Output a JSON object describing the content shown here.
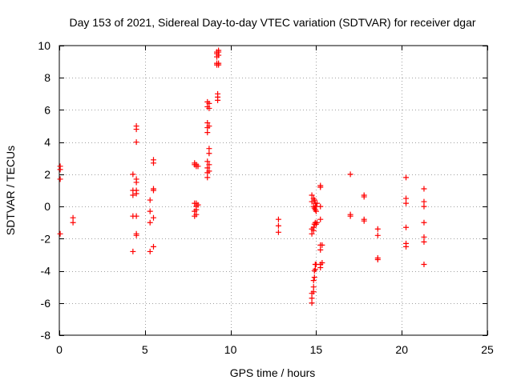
{
  "chart_data": {
    "type": "scatter",
    "title": "Day 153 of 2021, Sidereal Day-to-day VTEC variation (SDTVAR) for receiver dgar",
    "xlabel": "GPS time / hours",
    "ylabel": "SDTVAR / TECUs",
    "xlim": [
      0,
      25
    ],
    "ylim": [
      -8,
      10
    ],
    "xticks": [
      0,
      5,
      10,
      15,
      20,
      25
    ],
    "yticks": [
      -8,
      -6,
      -4,
      -2,
      0,
      2,
      4,
      6,
      8,
      10
    ],
    "grid": true,
    "marker": "plus",
    "color": "#ff0000",
    "series": [
      {
        "name": "SDTVAR",
        "points": [
          [
            0.05,
            2.5
          ],
          [
            0.05,
            2.3
          ],
          [
            0.05,
            1.7
          ],
          [
            0.05,
            -1.7
          ],
          [
            0.8,
            -0.7
          ],
          [
            0.8,
            -1.0
          ],
          [
            4.3,
            2.0
          ],
          [
            4.3,
            1.0
          ],
          [
            4.3,
            0.7
          ],
          [
            4.3,
            -0.6
          ],
          [
            4.3,
            -2.8
          ],
          [
            4.5,
            5.0
          ],
          [
            4.5,
            4.8
          ],
          [
            4.5,
            4.0
          ],
          [
            4.5,
            1.7
          ],
          [
            4.5,
            1.5
          ],
          [
            4.5,
            1.0
          ],
          [
            4.5,
            0.8
          ],
          [
            4.5,
            -0.6
          ],
          [
            4.5,
            -1.7
          ],
          [
            4.5,
            -1.8
          ],
          [
            5.3,
            0.4
          ],
          [
            5.3,
            -0.3
          ],
          [
            5.3,
            -1.0
          ],
          [
            5.3,
            -2.8
          ],
          [
            5.5,
            2.9
          ],
          [
            5.5,
            2.7
          ],
          [
            5.5,
            1.1
          ],
          [
            5.5,
            1.0
          ],
          [
            5.5,
            -0.7
          ],
          [
            5.5,
            -2.5
          ],
          [
            7.9,
            2.7
          ],
          [
            7.9,
            2.6
          ],
          [
            7.9,
            0.2
          ],
          [
            7.9,
            -0.3
          ],
          [
            7.9,
            -0.6
          ],
          [
            8.0,
            2.6
          ],
          [
            8.0,
            2.5
          ],
          [
            8.0,
            0.2
          ],
          [
            8.0,
            0.0
          ],
          [
            8.0,
            -0.2
          ],
          [
            8.0,
            -0.5
          ],
          [
            8.1,
            2.5
          ],
          [
            8.1,
            0.1
          ],
          [
            8.65,
            6.5
          ],
          [
            8.65,
            6.2
          ],
          [
            8.65,
            5.2
          ],
          [
            8.65,
            4.9
          ],
          [
            8.65,
            4.6
          ],
          [
            8.65,
            2.8
          ],
          [
            8.65,
            2.4
          ],
          [
            8.65,
            2.1
          ],
          [
            8.65,
            1.8
          ],
          [
            8.75,
            6.4
          ],
          [
            8.75,
            6.1
          ],
          [
            8.75,
            5.0
          ],
          [
            8.75,
            3.6
          ],
          [
            8.75,
            3.3
          ],
          [
            8.75,
            2.6
          ],
          [
            8.75,
            2.2
          ],
          [
            9.2,
            9.6
          ],
          [
            9.2,
            9.5
          ],
          [
            9.2,
            9.3
          ],
          [
            9.2,
            8.9
          ],
          [
            9.2,
            8.8
          ],
          [
            9.25,
            7.0
          ],
          [
            9.25,
            6.8
          ],
          [
            9.25,
            6.6
          ],
          [
            9.3,
            9.7
          ],
          [
            9.3,
            9.6
          ],
          [
            9.3,
            9.4
          ],
          [
            9.3,
            8.9
          ],
          [
            9.3,
            8.8
          ],
          [
            12.8,
            -0.8
          ],
          [
            12.8,
            -1.2
          ],
          [
            12.8,
            -1.6
          ],
          [
            14.75,
            0.7
          ],
          [
            14.75,
            0.3
          ],
          [
            14.75,
            -1.4
          ],
          [
            14.75,
            -1.7
          ],
          [
            14.75,
            -5.4
          ],
          [
            14.75,
            -5.7
          ],
          [
            14.75,
            -6.0
          ],
          [
            14.85,
            0.5
          ],
          [
            14.85,
            0.0
          ],
          [
            14.85,
            -1.3
          ],
          [
            14.85,
            -1.5
          ],
          [
            14.85,
            -4.6
          ],
          [
            14.85,
            -5.0
          ],
          [
            14.85,
            -5.3
          ],
          [
            14.9,
            0.4
          ],
          [
            14.9,
            -0.1
          ],
          [
            14.9,
            -1.1
          ],
          [
            14.9,
            -4.0
          ],
          [
            14.9,
            -4.4
          ],
          [
            14.95,
            0.2
          ],
          [
            14.95,
            -0.2
          ],
          [
            14.95,
            -1.0
          ],
          [
            14.95,
            -3.6
          ],
          [
            14.95,
            -3.9
          ],
          [
            15.0,
            0.0
          ],
          [
            15.0,
            -0.3
          ],
          [
            15.0,
            -1.1
          ],
          [
            15.0,
            -3.6
          ],
          [
            15.05,
            0.2
          ],
          [
            15.05,
            -1.0
          ],
          [
            15.25,
            1.3
          ],
          [
            15.25,
            1.2
          ],
          [
            15.25,
            0.0
          ],
          [
            15.25,
            -0.8
          ],
          [
            15.25,
            -2.4
          ],
          [
            15.25,
            -2.7
          ],
          [
            15.25,
            -3.6
          ],
          [
            15.25,
            -3.8
          ],
          [
            15.35,
            -2.4
          ],
          [
            15.35,
            -3.5
          ],
          [
            17.0,
            2.0
          ],
          [
            17.0,
            -0.5
          ],
          [
            17.0,
            -0.6
          ],
          [
            17.8,
            0.7
          ],
          [
            17.8,
            0.6
          ],
          [
            17.8,
            -0.8
          ],
          [
            17.8,
            -0.9
          ],
          [
            18.6,
            -1.4
          ],
          [
            18.6,
            -1.8
          ],
          [
            18.6,
            -3.2
          ],
          [
            18.6,
            -3.3
          ],
          [
            20.25,
            1.8
          ],
          [
            20.25,
            0.5
          ],
          [
            20.25,
            0.2
          ],
          [
            20.25,
            -1.3
          ],
          [
            20.25,
            -2.3
          ],
          [
            20.25,
            -2.5
          ],
          [
            21.3,
            1.1
          ],
          [
            21.3,
            0.3
          ],
          [
            21.3,
            0.0
          ],
          [
            21.3,
            -1.0
          ],
          [
            21.3,
            -1.9
          ],
          [
            21.3,
            -2.2
          ],
          [
            21.3,
            -3.6
          ]
        ]
      }
    ]
  }
}
